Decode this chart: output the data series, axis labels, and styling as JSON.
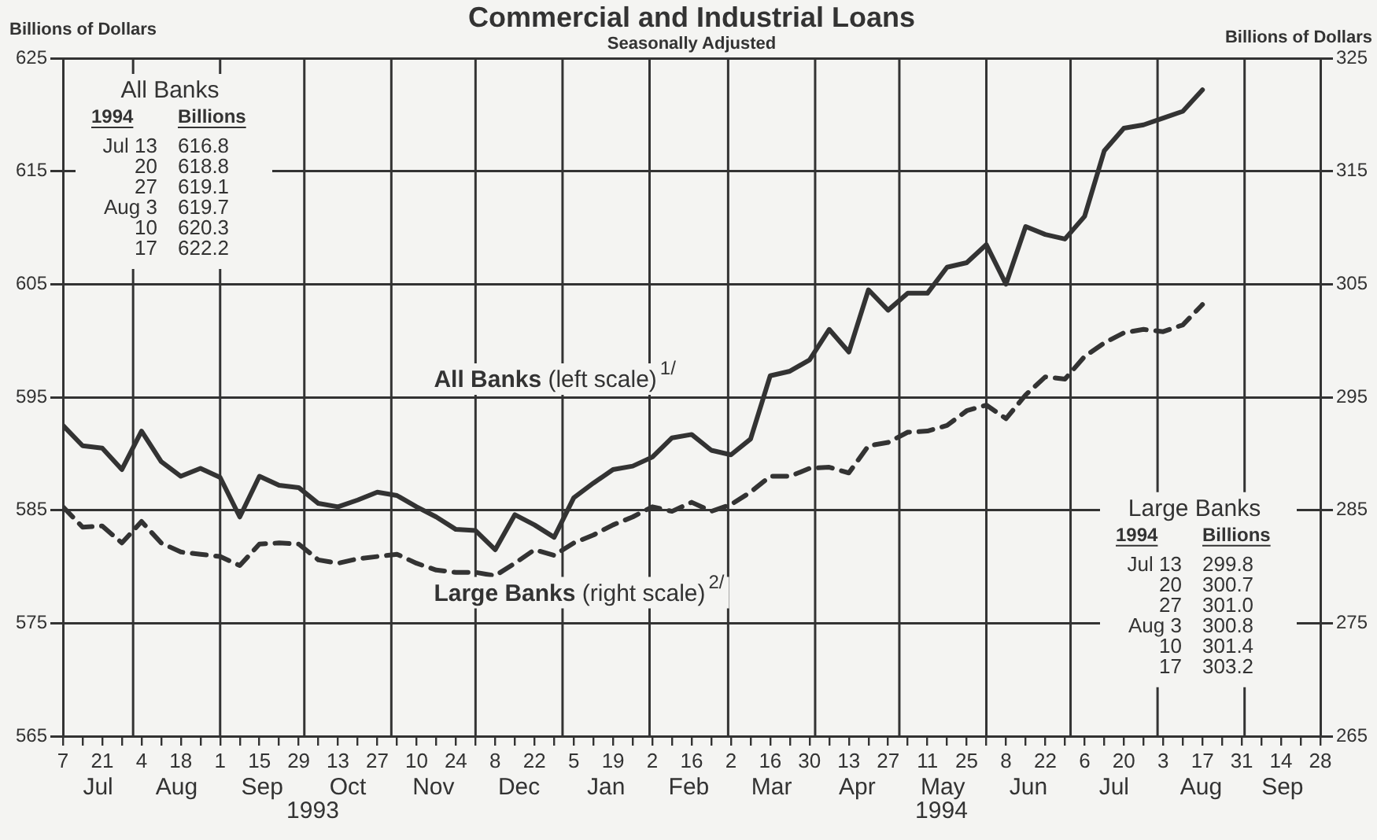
{
  "chart_data": {
    "type": "line",
    "title": "Commercial and Industrial Loans",
    "subtitle": "Seasonally Adjusted",
    "ylabel": "Billions of Dollars",
    "y2label": "Billions of Dollars",
    "x": [
      "1993-07-07",
      "1993-07-14",
      "1993-07-21",
      "1993-07-28",
      "1993-08-04",
      "1993-08-11",
      "1993-08-18",
      "1993-08-25",
      "1993-09-01",
      "1993-09-08",
      "1993-09-15",
      "1993-09-22",
      "1993-09-29",
      "1993-10-06",
      "1993-10-13",
      "1993-10-20",
      "1993-10-27",
      "1993-11-03",
      "1993-11-10",
      "1993-11-17",
      "1993-11-24",
      "1993-12-01",
      "1993-12-08",
      "1993-12-15",
      "1993-12-22",
      "1993-12-29",
      "1994-01-05",
      "1994-01-12",
      "1994-01-19",
      "1994-01-26",
      "1994-02-02",
      "1994-02-09",
      "1994-02-16",
      "1994-02-23",
      "1994-03-02",
      "1994-03-09",
      "1994-03-16",
      "1994-03-23",
      "1994-03-30",
      "1994-04-06",
      "1994-04-13",
      "1994-04-20",
      "1994-04-27",
      "1994-05-04",
      "1994-05-11",
      "1994-05-18",
      "1994-05-25",
      "1994-06-01",
      "1994-06-08",
      "1994-06-15",
      "1994-06-22",
      "1994-06-29",
      "1994-07-06",
      "1994-07-13",
      "1994-07-20",
      "1994-07-27",
      "1994-08-03",
      "1994-08-10",
      "1994-08-17"
    ],
    "series": [
      {
        "name": "All Banks (left scale)$^{1/}$",
        "color": "#333333",
        "line_style": "solid",
        "values": [
          592.5,
          590.7,
          590.5,
          588.6,
          592.0,
          589.3,
          588.0,
          588.7,
          587.9,
          584.4,
          588.0,
          587.2,
          587.0,
          585.6,
          585.3,
          585.9,
          586.6,
          586.3,
          585.3,
          584.4,
          583.3,
          583.2,
          581.5,
          584.6,
          583.7,
          582.6,
          586.1,
          587.4,
          588.6,
          588.9,
          589.7,
          591.4,
          591.7,
          590.3,
          589.9,
          591.3,
          596.9,
          597.3,
          598.3,
          601.0,
          599.0,
          604.5,
          602.7,
          604.2,
          604.2,
          606.5,
          606.9,
          608.5,
          605.0,
          610.1,
          609.4,
          609.0,
          611.0,
          616.8,
          618.8,
          619.1,
          619.7,
          620.3,
          622.2
        ]
      },
      {
        "name": "Large Banks (right scale)$^{2/}$",
        "color": "#333333",
        "line_style": "dashed",
        "axis": "y2",
        "values": [
          285.3,
          283.5,
          283.6,
          282.1,
          284.0,
          282.1,
          281.3,
          281.1,
          280.9,
          280.1,
          282.0,
          282.1,
          282.0,
          280.6,
          280.3,
          280.7,
          280.9,
          281.1,
          280.3,
          279.7,
          279.5,
          279.5,
          279.2,
          280.3,
          281.5,
          281.0,
          282.1,
          282.8,
          283.7,
          284.4,
          285.3,
          284.9,
          285.7,
          284.9,
          285.5,
          286.6,
          288.0,
          288.0,
          288.7,
          288.8,
          288.3,
          290.7,
          291.0,
          291.9,
          292.0,
          292.5,
          293.8,
          294.3,
          293.1,
          295.2,
          296.8,
          296.6,
          298.6,
          299.8,
          300.7,
          301.0,
          300.8,
          301.4,
          303.2
        ]
      }
    ],
    "xlim": [
      "1993-07-07",
      "1994-09-28"
    ],
    "xticks": [
      {
        "value": "1993-07-07",
        "label": "7"
      },
      {
        "value": "1993-07-14",
        "label": null
      },
      {
        "value": "1993-07-21",
        "label": "21"
      },
      {
        "value": "1993-07-28",
        "label": null
      },
      {
        "value": "1993-08-04",
        "label": "4"
      },
      {
        "value": "1993-08-11",
        "label": null
      },
      {
        "value": "1993-08-18",
        "label": "18"
      },
      {
        "value": "1993-08-25",
        "label": null
      },
      {
        "value": "1993-09-01",
        "label": "1"
      },
      {
        "value": "1993-09-08",
        "label": null
      },
      {
        "value": "1993-09-15",
        "label": "15"
      },
      {
        "value": "1993-09-22",
        "label": null
      },
      {
        "value": "1993-09-29",
        "label": "29"
      },
      {
        "value": "1993-10-06",
        "label": null
      },
      {
        "value": "1993-10-13",
        "label": "13"
      },
      {
        "value": "1993-10-20",
        "label": null
      },
      {
        "value": "1993-10-27",
        "label": "27"
      },
      {
        "value": "1993-11-03",
        "label": null
      },
      {
        "value": "1993-11-10",
        "label": "10"
      },
      {
        "value": "1993-11-17",
        "label": null
      },
      {
        "value": "1993-11-24",
        "label": "24"
      },
      {
        "value": "1993-12-01",
        "label": null
      },
      {
        "value": "1993-12-08",
        "label": "8"
      },
      {
        "value": "1993-12-15",
        "label": null
      },
      {
        "value": "1993-12-22",
        "label": "22"
      },
      {
        "value": "1993-12-29",
        "label": null
      },
      {
        "value": "1994-01-05",
        "label": "5"
      },
      {
        "value": "1994-01-12",
        "label": null
      },
      {
        "value": "1994-01-19",
        "label": "19"
      },
      {
        "value": "1994-01-26",
        "label": null
      },
      {
        "value": "1994-02-02",
        "label": "2"
      },
      {
        "value": "1994-02-09",
        "label": null
      },
      {
        "value": "1994-02-16",
        "label": "16"
      },
      {
        "value": "1994-02-23",
        "label": null
      },
      {
        "value": "1994-03-02",
        "label": "2"
      },
      {
        "value": "1994-03-09",
        "label": null
      },
      {
        "value": "1994-03-16",
        "label": "16"
      },
      {
        "value": "1994-03-23",
        "label": null
      },
      {
        "value": "1994-03-30",
        "label": "30"
      },
      {
        "value": "1994-04-06",
        "label": null
      },
      {
        "value": "1994-04-13",
        "label": "13"
      },
      {
        "value": "1994-04-20",
        "label": null
      },
      {
        "value": "1994-04-27",
        "label": "27"
      },
      {
        "value": "1994-05-04",
        "label": null
      },
      {
        "value": "1994-05-11",
        "label": "11"
      },
      {
        "value": "1994-05-18",
        "label": null
      },
      {
        "value": "1994-05-25",
        "label": "25"
      },
      {
        "value": "1994-06-01",
        "label": null
      },
      {
        "value": "1994-06-08",
        "label": "8"
      },
      {
        "value": "1994-06-15",
        "label": null
      },
      {
        "value": "1994-06-22",
        "label": "22"
      },
      {
        "value": "1994-06-29",
        "label": null
      },
      {
        "value": "1994-07-06",
        "label": "6"
      },
      {
        "value": "1994-07-13",
        "label": null
      },
      {
        "value": "1994-07-20",
        "label": "20"
      },
      {
        "value": "1994-07-27",
        "label": null
      },
      {
        "value": "1994-08-03",
        "label": "3"
      },
      {
        "value": "1994-08-10",
        "label": null
      },
      {
        "value": "1994-08-17",
        "label": "17"
      },
      {
        "value": "1994-08-24",
        "label": null
      },
      {
        "value": "1994-08-31",
        "label": "31"
      },
      {
        "value": "1994-09-07",
        "label": null
      },
      {
        "value": "1994-09-14",
        "label": "14"
      },
      {
        "value": "1994-09-21",
        "label": null
      },
      {
        "value": "1994-09-28",
        "label": "28"
      }
    ],
    "ylim": [
      565,
      625
    ],
    "yticks": [
      565,
      575,
      585,
      595,
      605,
      615,
      625
    ],
    "y2lim": [
      265,
      325
    ],
    "y2ticks": [
      265,
      275,
      285,
      295,
      305,
      315,
      325
    ],
    "grid": "y",
    "legend": false,
    "marker": "none",
    "ref_lines": [
      {
        "axis": "x",
        "value": "1993-08-01",
        "label": null
      },
      {
        "axis": "x",
        "value": "1993-09-01",
        "label": null
      },
      {
        "axis": "x",
        "value": "1993-10-01",
        "label": null
      },
      {
        "axis": "x",
        "value": "1993-11-01",
        "label": null
      },
      {
        "axis": "x",
        "value": "1993-12-01",
        "label": null
      },
      {
        "axis": "x",
        "value": "1994-01-01",
        "label": null
      },
      {
        "axis": "x",
        "value": "1994-02-01",
        "label": null
      },
      {
        "axis": "x",
        "value": "1994-03-01",
        "label": null
      },
      {
        "axis": "x",
        "value": "1994-04-01",
        "label": null
      },
      {
        "axis": "x",
        "value": "1994-05-01",
        "label": null
      },
      {
        "axis": "x",
        "value": "1994-06-01",
        "label": null
      },
      {
        "axis": "x",
        "value": "1994-07-01",
        "label": null
      },
      {
        "axis": "x",
        "value": "1994-08-01",
        "label": null
      },
      {
        "axis": "x",
        "value": "1994-09-01",
        "label": null
      }
    ],
    "annotations": [
      "Jul",
      "Aug",
      "Sep",
      "Oct",
      "Nov",
      "Dec",
      "Jan",
      "Feb",
      "Mar",
      "Apr",
      "May",
      "Jun",
      "Jul",
      "Aug",
      "Sep",
      "1993",
      "1994",
      "All Banks",
      "1994",
      "Billions",
      "Jul 13",
      "20",
      "27",
      "Aug 3",
      "10",
      "17",
      "616.8",
      "618.8",
      "619.1",
      "619.7",
      "620.3",
      "622.2",
      "Large Banks",
      "1994",
      "Billions",
      "Jul 13",
      "20",
      "27",
      "Aug 3",
      "10",
      "17",
      "299.8",
      "300.7",
      "301.0",
      "300.8",
      "301.4",
      "303.2"
    ]
  }
}
